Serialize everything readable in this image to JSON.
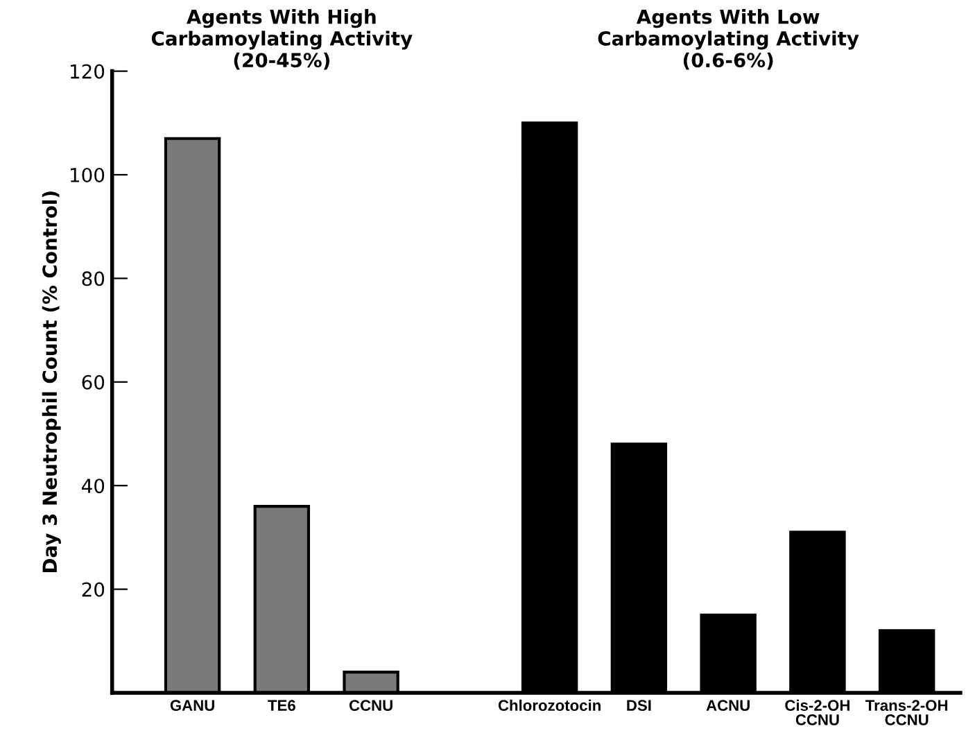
{
  "chart_data": {
    "type": "bar",
    "ylabel": "Day 3 Neutrophil Count (% Control)",
    "categories": [
      "GANU",
      "TE6",
      "CCNU",
      null,
      "Chlorozotocin",
      "DSI",
      "ACNU",
      "Cis-2-OH\nCCNU",
      "Trans-2-OH\nCCNU"
    ],
    "values": [
      107,
      36,
      4,
      null,
      110,
      48,
      15,
      31,
      12
    ],
    "colors": [
      "#7a7a7a",
      "#7a7a7a",
      "#7a7a7a",
      null,
      "#000000",
      "#000000",
      "#000000",
      "#000000",
      "#000000"
    ],
    "ylim": [
      0,
      120
    ],
    "yticks": [
      20,
      40,
      60,
      80,
      100,
      120
    ],
    "annotations": [
      "Agents With High\nCarbamoylating Activity\n(20-45%)",
      "Agents With Low\nCarbamoylating Activity\n(0.6-6%)"
    ],
    "grid": false,
    "legend": false
  }
}
